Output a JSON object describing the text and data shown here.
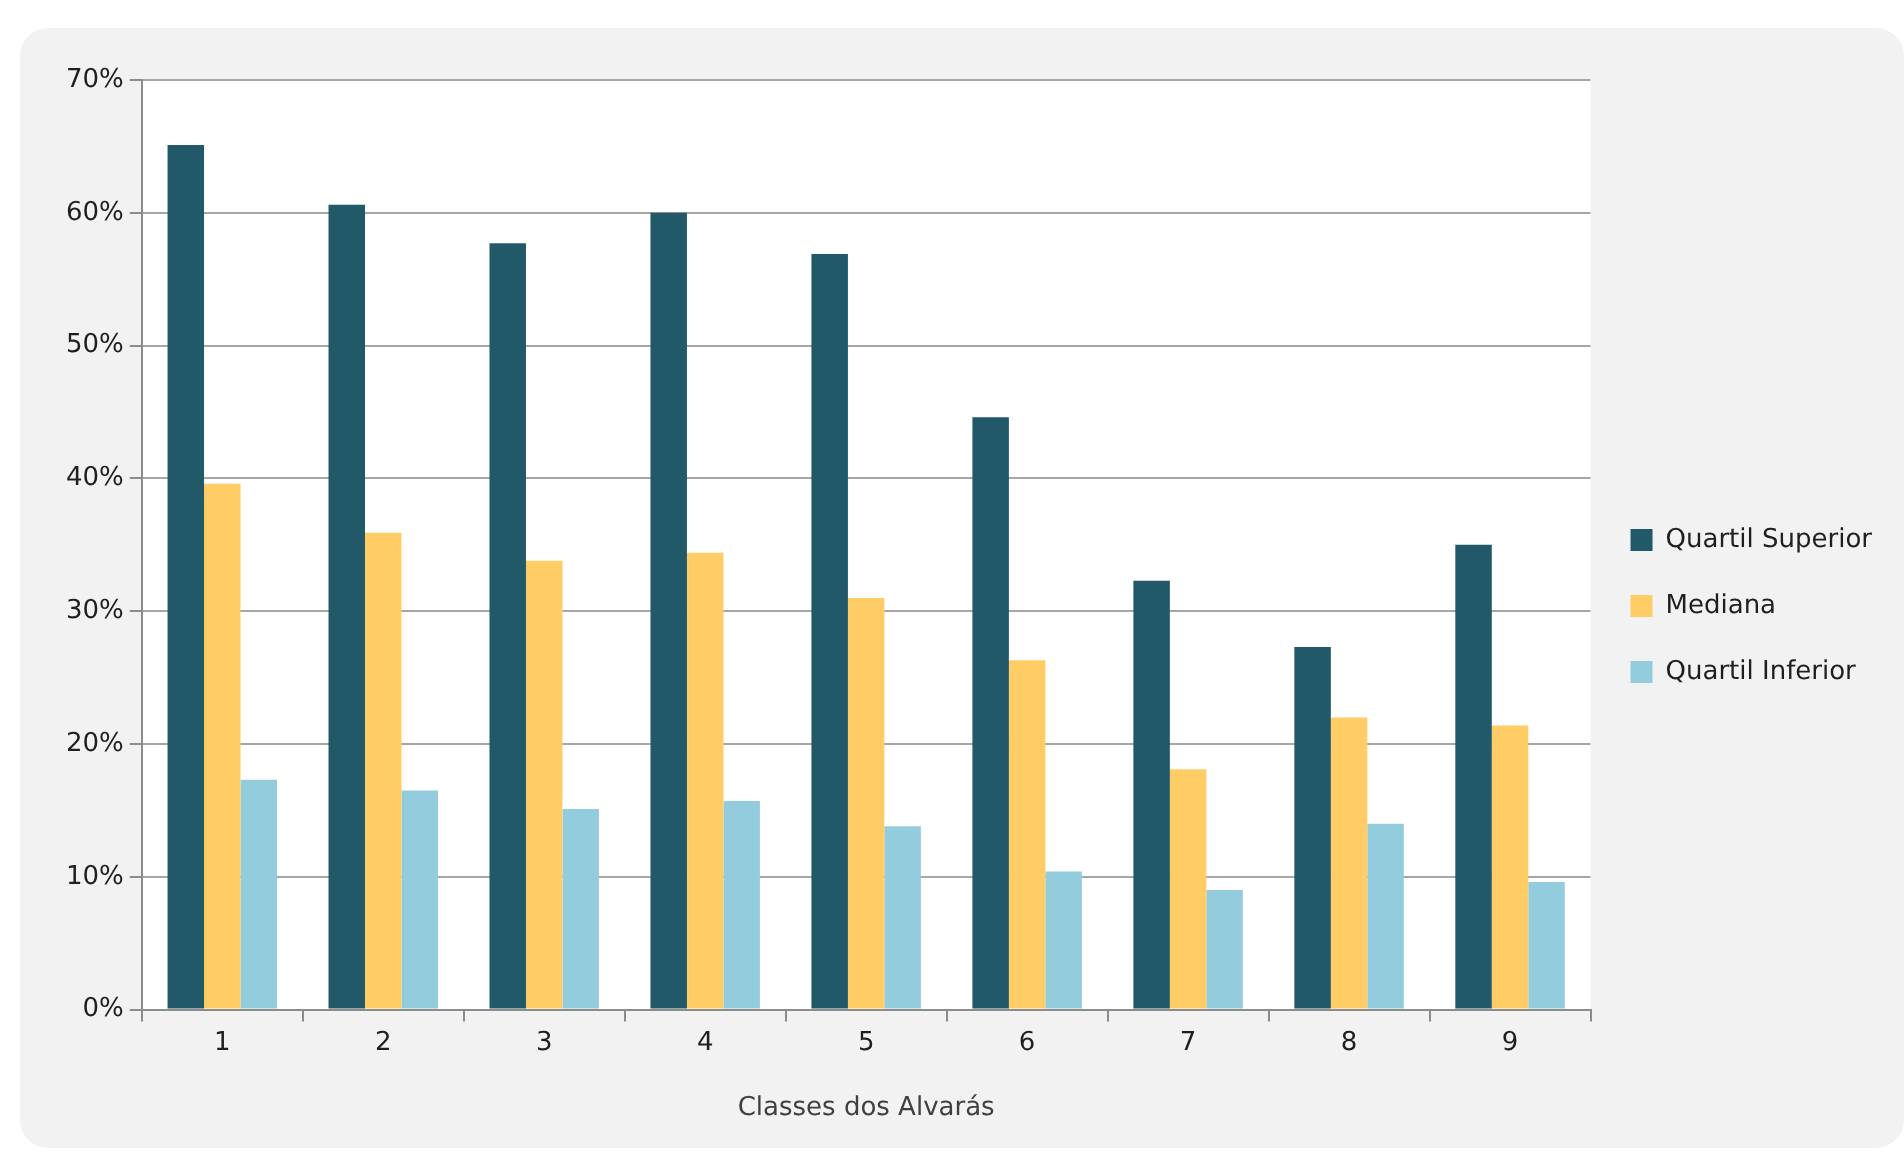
{
  "chart_data": {
    "type": "bar",
    "xlabel": "Classes dos Alvarás",
    "categories": [
      "1",
      "2",
      "3",
      "4",
      "5",
      "6",
      "7",
      "8",
      "9"
    ],
    "series": [
      {
        "name": "Quartil Superior",
        "color": "#215968",
        "values": [
          65.1,
          60.6,
          57.7,
          60.0,
          56.9,
          44.6,
          32.3,
          27.3,
          35.0
        ]
      },
      {
        "name": "Mediana",
        "color": "#ffcc66",
        "values": [
          39.6,
          35.9,
          33.8,
          34.4,
          31.0,
          26.3,
          18.1,
          22.0,
          21.4
        ]
      },
      {
        "name": "Quartil Inferior",
        "color": "#93cddd",
        "values": [
          17.3,
          16.5,
          15.1,
          15.7,
          13.8,
          10.4,
          9.0,
          14.0,
          9.6
        ]
      }
    ],
    "ylim": [
      0,
      70
    ],
    "yticks": [
      {
        "value": 0,
        "label": "0%"
      },
      {
        "value": 10,
        "label": "10%"
      },
      {
        "value": 20,
        "label": "20%"
      },
      {
        "value": 30,
        "label": "30%"
      },
      {
        "value": 40,
        "label": "40%"
      },
      {
        "value": 50,
        "label": "50%"
      },
      {
        "value": 60,
        "label": "60%"
      },
      {
        "value": 70,
        "label": "70%"
      }
    ],
    "grid": "y",
    "legend": "right"
  }
}
